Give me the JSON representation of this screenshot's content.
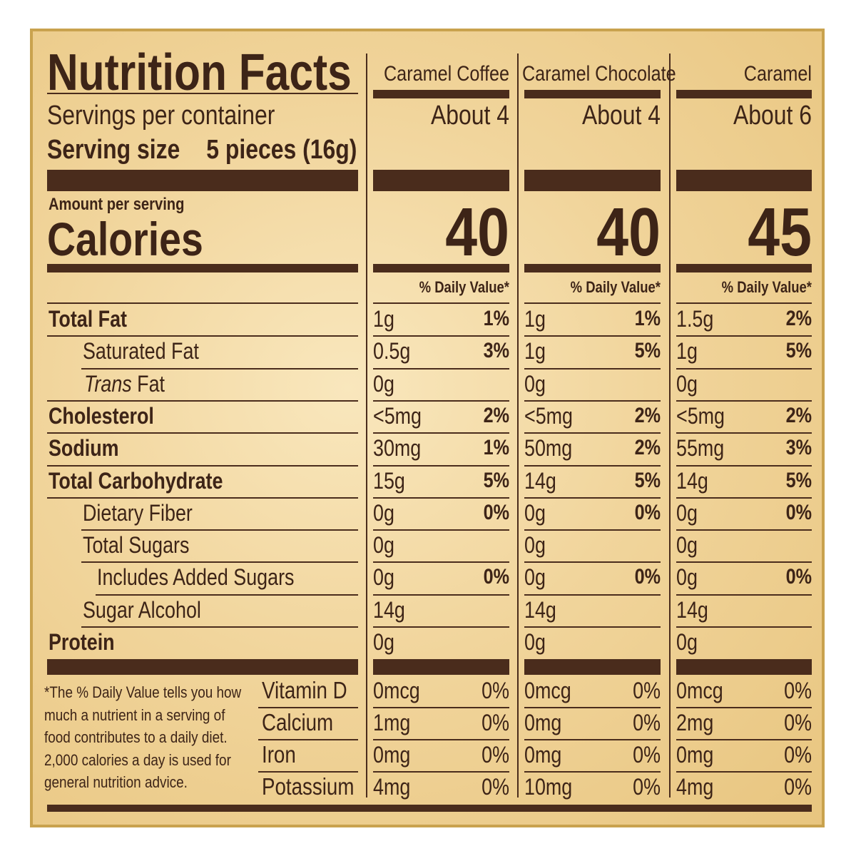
{
  "title": "Nutrition Facts",
  "servings_label": "Servings per container",
  "serving_size_label": "Serving size",
  "serving_size_value": "5 pieces (16g)",
  "amount_per_serving": "Amount per serving",
  "calories_label": "Calories",
  "dv_header": "% Daily Value*",
  "products": [
    {
      "name": "Caramel Coffee",
      "servings": "About 4",
      "calories": "40"
    },
    {
      "name": "Caramel Chocolate",
      "servings": "About 4",
      "calories": "40"
    },
    {
      "name": "Caramel",
      "servings": "About 6",
      "calories": "45"
    }
  ],
  "nutrients": [
    {
      "label": "Total Fat",
      "values": [
        [
          "1g",
          "1%"
        ],
        [
          "1g",
          "1%"
        ],
        [
          "1.5g",
          "2%"
        ]
      ]
    },
    {
      "label": "Saturated Fat",
      "values": [
        [
          "0.5g",
          "3%"
        ],
        [
          "1g",
          "5%"
        ],
        [
          "1g",
          "5%"
        ]
      ]
    },
    {
      "label_italic": "Trans",
      "label_rest": " Fat",
      "values": [
        [
          "0g",
          ""
        ],
        [
          "0g",
          ""
        ],
        [
          "0g",
          ""
        ]
      ]
    },
    {
      "label": "Cholesterol",
      "values": [
        [
          "<5mg",
          "2%"
        ],
        [
          "<5mg",
          "2%"
        ],
        [
          "<5mg",
          "2%"
        ]
      ]
    },
    {
      "label": "Sodium",
      "values": [
        [
          "30mg",
          "1%"
        ],
        [
          "50mg",
          "2%"
        ],
        [
          "55mg",
          "3%"
        ]
      ]
    },
    {
      "label": "Total Carbohydrate",
      "values": [
        [
          "15g",
          "5%"
        ],
        [
          "14g",
          "5%"
        ],
        [
          "14g",
          "5%"
        ]
      ]
    },
    {
      "label": "Dietary Fiber",
      "values": [
        [
          "0g",
          "0%"
        ],
        [
          "0g",
          "0%"
        ],
        [
          "0g",
          "0%"
        ]
      ]
    },
    {
      "label": "Total Sugars",
      "values": [
        [
          "0g",
          ""
        ],
        [
          "0g",
          ""
        ],
        [
          "0g",
          ""
        ]
      ]
    },
    {
      "label": "Includes Added Sugars",
      "values": [
        [
          "0g",
          "0%"
        ],
        [
          "0g",
          "0%"
        ],
        [
          "0g",
          "0%"
        ]
      ]
    },
    {
      "label": "Sugar Alcohol",
      "values": [
        [
          "14g",
          ""
        ],
        [
          "14g",
          ""
        ],
        [
          "14g",
          ""
        ]
      ]
    },
    {
      "label": "Protein",
      "values": [
        [
          "0g",
          ""
        ],
        [
          "0g",
          ""
        ],
        [
          "0g",
          ""
        ]
      ]
    }
  ],
  "vitamins": [
    {
      "label": "Vitamin D",
      "values": [
        [
          "0mcg",
          "0%"
        ],
        [
          "0mcg",
          "0%"
        ],
        [
          "0mcg",
          "0%"
        ]
      ]
    },
    {
      "label": "Calcium",
      "values": [
        [
          "1mg",
          "0%"
        ],
        [
          "0mg",
          "0%"
        ],
        [
          "2mg",
          "0%"
        ]
      ]
    },
    {
      "label": "Iron",
      "values": [
        [
          "0mg",
          "0%"
        ],
        [
          "0mg",
          "0%"
        ],
        [
          "0mg",
          "0%"
        ]
      ]
    },
    {
      "label": "Potassium",
      "values": [
        [
          "4mg",
          "0%"
        ],
        [
          "10mg",
          "0%"
        ],
        [
          "4mg",
          "0%"
        ]
      ]
    }
  ],
  "footnote": "*The % Daily Value tells you how much a nutrient in a serving of food contributes to a daily diet. 2,000 calories a day is used for general nutrition advice.",
  "colors": {
    "text": "#3d2417",
    "background": "#f3d9a2",
    "border": "#c9a24e"
  }
}
